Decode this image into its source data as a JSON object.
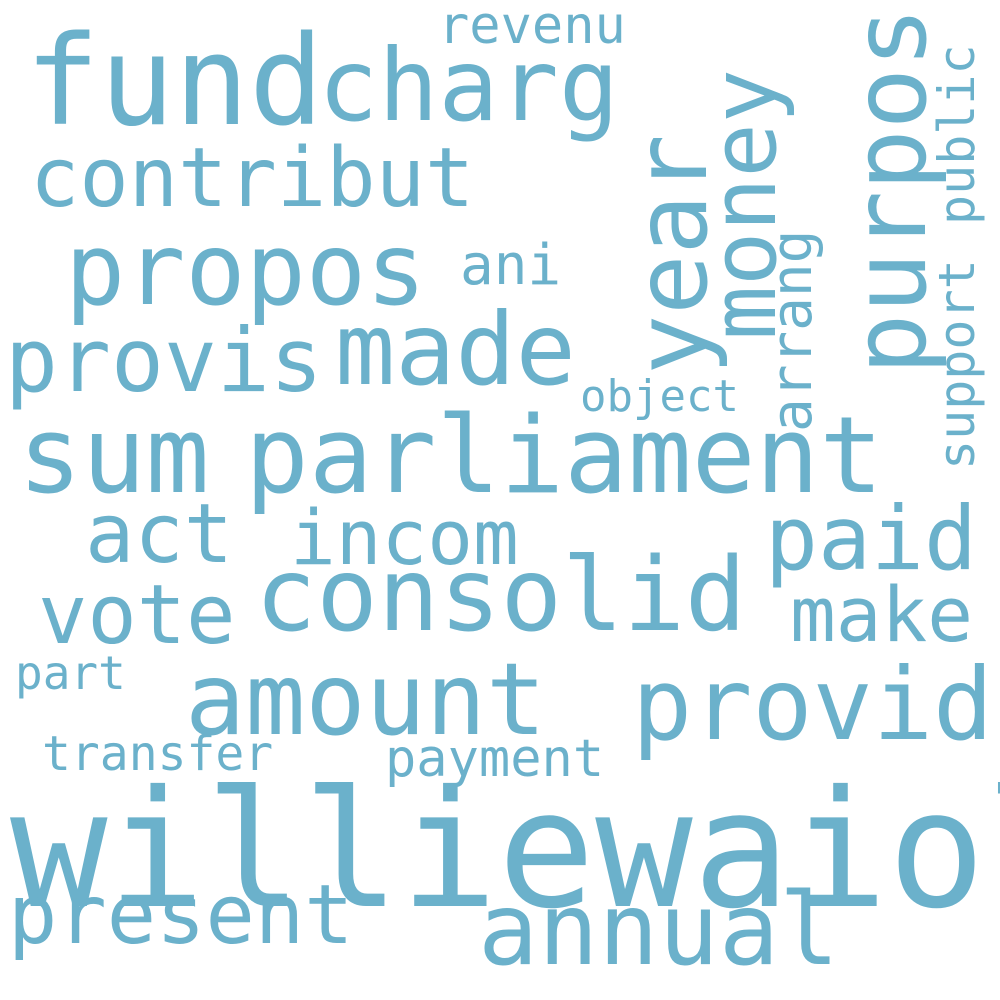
{
  "color": "#6BB1CB",
  "words": {
    "williewaiola": "williewaiola",
    "parliament": "parliament",
    "consolid": "consolid",
    "fund": "fund",
    "charg": "charg",
    "year": "year",
    "purpos": "purpos",
    "money": "money",
    "amount": "amount",
    "provid": "provid",
    "propos": "propos",
    "contribut": "contribut",
    "made": "made",
    "provis": "provis",
    "sum": "sum",
    "annual": "annual",
    "present": "present",
    "vote": "vote",
    "act": "act",
    "incom": "incom",
    "paid": "paid",
    "make": "make",
    "revenu": "revenu",
    "ani": "ani",
    "public": "public",
    "support": "support",
    "arrang": "arrang",
    "object": "object",
    "payment": "payment",
    "transfer": "transfer",
    "part": "part"
  }
}
